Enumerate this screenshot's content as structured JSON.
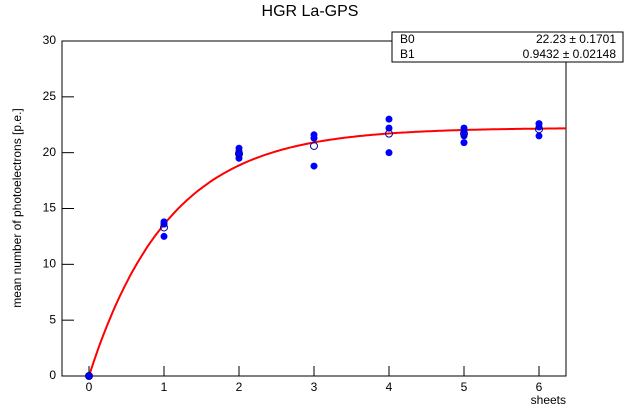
{
  "chart_data": {
    "type": "scatter",
    "title": "HGR La-GPS",
    "x_label": "sheets",
    "y_label": "mean number of photoelectrons [p.e.]",
    "xlim": [
      -0.36,
      6.36
    ],
    "ylim": [
      0,
      30
    ],
    "xticks": [
      0,
      1,
      2,
      3,
      4,
      5,
      6
    ],
    "yticks": [
      0,
      5,
      10,
      15,
      20,
      25,
      30
    ],
    "points": {
      "color": "#0000ff",
      "x": [
        0,
        1,
        1,
        1,
        2,
        2,
        2,
        2,
        3,
        3,
        3,
        4,
        4,
        4,
        5,
        5,
        5,
        5,
        6,
        6,
        6
      ],
      "y": [
        0,
        13.8,
        13.6,
        12.5,
        20.4,
        20.1,
        19.8,
        19.5,
        21.6,
        21.3,
        18.8,
        23.0,
        22.2,
        20.0,
        22.2,
        21.9,
        21.5,
        20.9,
        22.6,
        22.3,
        21.5
      ]
    },
    "means": {
      "color": "#000099",
      "x": [
        0,
        1,
        2,
        3,
        4,
        5,
        6
      ],
      "y": [
        0,
        13.3,
        19.9,
        20.6,
        21.7,
        21.7,
        22.1
      ]
    },
    "fit": {
      "color": "#ff0000",
      "params": [
        {
          "name": "B0",
          "value": 22.23,
          "error": 0.1701,
          "label": "22.23 ± 0.1701"
        },
        {
          "name": "B1",
          "value": 0.9432,
          "error": 0.02148,
          "label": "0.9432 ± 0.02148"
        }
      ]
    }
  }
}
